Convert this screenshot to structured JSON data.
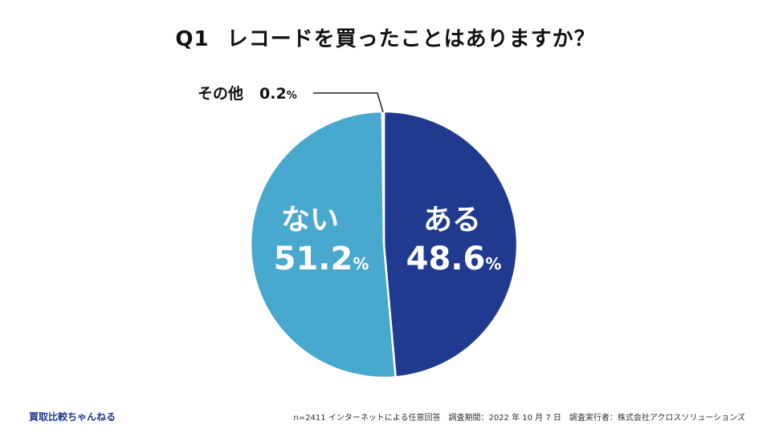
{
  "title": {
    "q": "Q1",
    "text": "レコードを買ったことはありますか？"
  },
  "chart_data": {
    "type": "pie",
    "unit": "%",
    "slices": [
      {
        "label": "ある",
        "value": 48.6,
        "color": "#1f3a8f"
      },
      {
        "label": "ない",
        "value": 51.2,
        "color": "#48a8ce"
      },
      {
        "label": "その他",
        "value": 0.2,
        "color": "#d9d9d9"
      }
    ]
  },
  "footer": {
    "brand": "買取比較ちゃんねる",
    "sample": "n=2411 インターネットによる任意回答",
    "period": "調査期間：2022 年 10 月 7 日",
    "org": "調査実行者：株式会社アクロスソリューションズ"
  }
}
